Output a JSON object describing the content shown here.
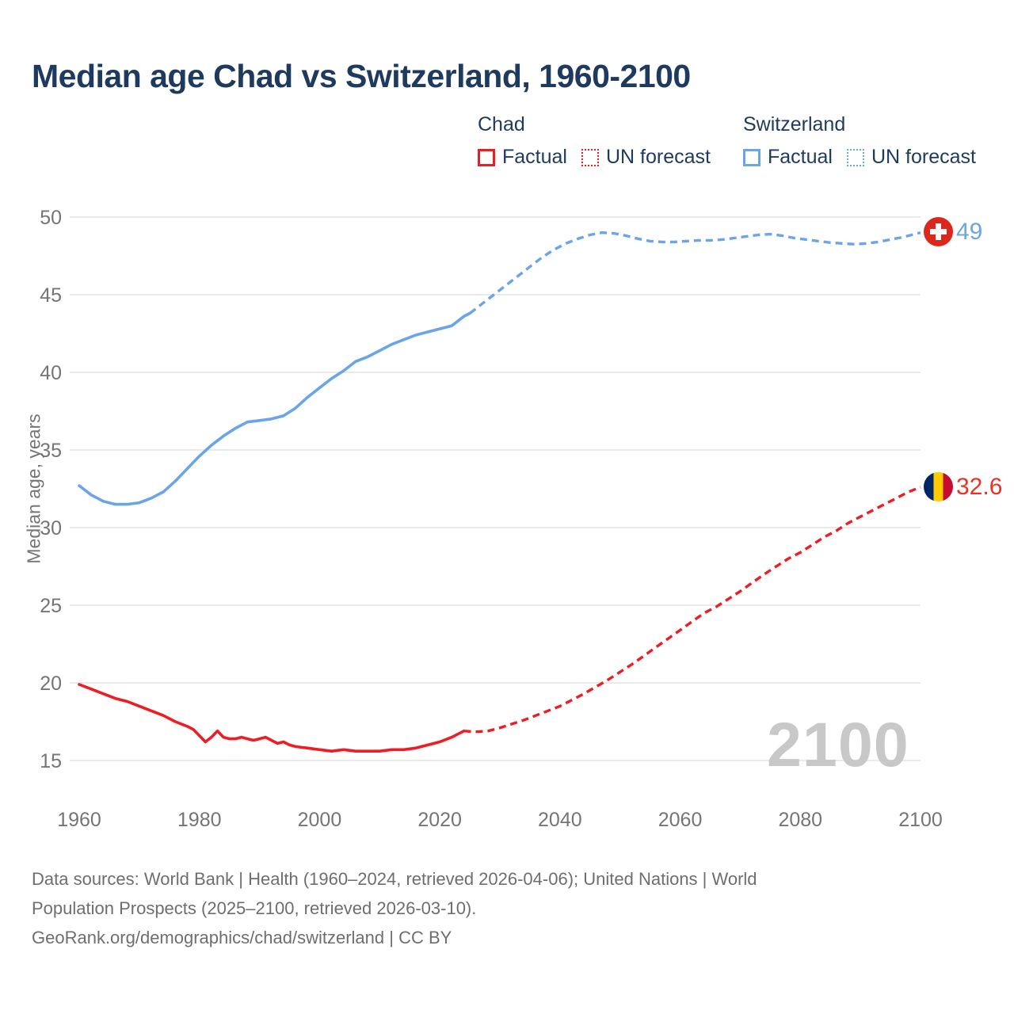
{
  "title": "Median age Chad vs Switzerland, 1960-2100",
  "legend": {
    "groups": [
      {
        "name": "Chad",
        "color": "#ee1d23",
        "items": [
          {
            "label": "Factual",
            "style": "solid"
          },
          {
            "label": "UN forecast",
            "style": "dotted"
          }
        ]
      },
      {
        "name": "Switzerland",
        "color": "#6ba4e7",
        "items": [
          {
            "label": "Factual",
            "style": "solid"
          },
          {
            "label": "UN forecast",
            "style": "dotted"
          }
        ]
      }
    ]
  },
  "chart_data": {
    "type": "line",
    "title": "Median age Chad vs Switzerland, 1960-2100",
    "xlabel": "",
    "ylabel": "Median age, years",
    "watermark": "2100",
    "grid": "horizontal",
    "legend_position": "top-right",
    "x_ticks": [
      1960,
      1980,
      2000,
      2020,
      2040,
      2060,
      2080,
      2100
    ],
    "y_ticks": [
      15,
      20,
      25,
      30,
      35,
      40,
      45,
      50
    ],
    "xlim": [
      1958,
      2100
    ],
    "ylim": [
      13.5,
      51.5
    ],
    "series": [
      {
        "name": "Switzerland Factual",
        "country": "Switzerland",
        "color": "#6ba4e7",
        "dash": false,
        "points": [
          [
            1960,
            32.7
          ],
          [
            1962,
            32.1
          ],
          [
            1964,
            31.7
          ],
          [
            1966,
            31.5
          ],
          [
            1968,
            31.5
          ],
          [
            1970,
            31.6
          ],
          [
            1972,
            31.9
          ],
          [
            1974,
            32.3
          ],
          [
            1976,
            33.0
          ],
          [
            1978,
            33.8
          ],
          [
            1980,
            34.6
          ],
          [
            1982,
            35.3
          ],
          [
            1984,
            35.9
          ],
          [
            1986,
            36.4
          ],
          [
            1988,
            36.8
          ],
          [
            1990,
            36.9
          ],
          [
            1992,
            37.0
          ],
          [
            1994,
            37.2
          ],
          [
            1996,
            37.7
          ],
          [
            1998,
            38.4
          ],
          [
            2000,
            39.0
          ],
          [
            2002,
            39.6
          ],
          [
            2004,
            40.1
          ],
          [
            2006,
            40.7
          ],
          [
            2008,
            41.0
          ],
          [
            2010,
            41.4
          ],
          [
            2012,
            41.8
          ],
          [
            2014,
            42.1
          ],
          [
            2016,
            42.4
          ],
          [
            2018,
            42.6
          ],
          [
            2020,
            42.8
          ],
          [
            2022,
            43.0
          ],
          [
            2023,
            43.3
          ],
          [
            2024,
            43.6
          ],
          [
            2025,
            43.8
          ]
        ]
      },
      {
        "name": "Switzerland UN forecast",
        "country": "Switzerland",
        "color": "#6ba4e7",
        "dash": true,
        "points": [
          [
            2025,
            43.8
          ],
          [
            2027,
            44.4
          ],
          [
            2029,
            45.0
          ],
          [
            2031,
            45.6
          ],
          [
            2033,
            46.2
          ],
          [
            2035,
            46.8
          ],
          [
            2037,
            47.4
          ],
          [
            2039,
            47.9
          ],
          [
            2041,
            48.3
          ],
          [
            2043,
            48.6
          ],
          [
            2045,
            48.85
          ],
          [
            2047,
            49.0
          ],
          [
            2049,
            48.95
          ],
          [
            2051,
            48.8
          ],
          [
            2053,
            48.6
          ],
          [
            2055,
            48.45
          ],
          [
            2057,
            48.4
          ],
          [
            2059,
            48.4
          ],
          [
            2061,
            48.45
          ],
          [
            2063,
            48.5
          ],
          [
            2065,
            48.5
          ],
          [
            2067,
            48.55
          ],
          [
            2069,
            48.65
          ],
          [
            2071,
            48.75
          ],
          [
            2073,
            48.85
          ],
          [
            2075,
            48.9
          ],
          [
            2077,
            48.8
          ],
          [
            2079,
            48.65
          ],
          [
            2081,
            48.55
          ],
          [
            2083,
            48.45
          ],
          [
            2085,
            48.35
          ],
          [
            2087,
            48.3
          ],
          [
            2089,
            48.25
          ],
          [
            2091,
            48.3
          ],
          [
            2093,
            48.4
          ],
          [
            2095,
            48.55
          ],
          [
            2097,
            48.7
          ],
          [
            2099,
            48.9
          ],
          [
            2100,
            49.0
          ]
        ]
      },
      {
        "name": "Chad Factual",
        "country": "Chad",
        "color": "#ee1d23",
        "dash": false,
        "points": [
          [
            1960,
            19.9
          ],
          [
            1962,
            19.6
          ],
          [
            1964,
            19.3
          ],
          [
            1966,
            19.0
          ],
          [
            1968,
            18.8
          ],
          [
            1970,
            18.5
          ],
          [
            1972,
            18.2
          ],
          [
            1974,
            17.9
          ],
          [
            1976,
            17.5
          ],
          [
            1978,
            17.2
          ],
          [
            1979,
            17.0
          ],
          [
            1980,
            16.6
          ],
          [
            1981,
            16.2
          ],
          [
            1982,
            16.5
          ],
          [
            1983,
            16.9
          ],
          [
            1984,
            16.5
          ],
          [
            1985,
            16.4
          ],
          [
            1986,
            16.4
          ],
          [
            1987,
            16.5
          ],
          [
            1988,
            16.4
          ],
          [
            1989,
            16.3
          ],
          [
            1990,
            16.4
          ],
          [
            1991,
            16.5
          ],
          [
            1992,
            16.3
          ],
          [
            1993,
            16.1
          ],
          [
            1994,
            16.2
          ],
          [
            1995,
            16.0
          ],
          [
            1996,
            15.9
          ],
          [
            1998,
            15.8
          ],
          [
            2000,
            15.7
          ],
          [
            2002,
            15.6
          ],
          [
            2004,
            15.7
          ],
          [
            2006,
            15.6
          ],
          [
            2008,
            15.6
          ],
          [
            2010,
            15.6
          ],
          [
            2012,
            15.7
          ],
          [
            2014,
            15.7
          ],
          [
            2016,
            15.8
          ],
          [
            2018,
            16.0
          ],
          [
            2020,
            16.2
          ],
          [
            2022,
            16.5
          ],
          [
            2023,
            16.7
          ],
          [
            2024,
            16.9
          ]
        ]
      },
      {
        "name": "Chad UN forecast",
        "country": "Chad",
        "color": "#ee1d23",
        "dash": true,
        "points": [
          [
            2024,
            16.9
          ],
          [
            2026,
            16.85
          ],
          [
            2028,
            16.9
          ],
          [
            2030,
            17.1
          ],
          [
            2032,
            17.35
          ],
          [
            2034,
            17.6
          ],
          [
            2036,
            17.9
          ],
          [
            2038,
            18.2
          ],
          [
            2040,
            18.5
          ],
          [
            2042,
            18.9
          ],
          [
            2044,
            19.3
          ],
          [
            2046,
            19.75
          ],
          [
            2048,
            20.2
          ],
          [
            2050,
            20.7
          ],
          [
            2052,
            21.2
          ],
          [
            2054,
            21.75
          ],
          [
            2056,
            22.3
          ],
          [
            2058,
            22.85
          ],
          [
            2060,
            23.4
          ],
          [
            2062,
            23.95
          ],
          [
            2064,
            24.5
          ],
          [
            2066,
            24.9
          ],
          [
            2068,
            25.4
          ],
          [
            2070,
            25.9
          ],
          [
            2072,
            26.45
          ],
          [
            2074,
            27.0
          ],
          [
            2076,
            27.5
          ],
          [
            2078,
            28.0
          ],
          [
            2080,
            28.4
          ],
          [
            2082,
            28.9
          ],
          [
            2084,
            29.4
          ],
          [
            2086,
            29.8
          ],
          [
            2088,
            30.3
          ],
          [
            2090,
            30.7
          ],
          [
            2092,
            31.1
          ],
          [
            2094,
            31.5
          ],
          [
            2096,
            31.9
          ],
          [
            2098,
            32.3
          ],
          [
            2100,
            32.6
          ]
        ]
      }
    ],
    "end_labels": [
      {
        "country": "Switzerland",
        "value": "49",
        "flag": "swiss-flag",
        "color": "#6ba4e7"
      },
      {
        "country": "Chad",
        "value": "32.6",
        "flag": "chad-flag",
        "color": "#ee3124"
      }
    ]
  },
  "footer": {
    "lines": [
      "Data sources: World Bank | Health (1960–2024, retrieved 2026-04-06); United Nations | World",
      "Population Prospects (2025–2100, retrieved 2026-03-10).",
      "GeoRank.org/demographics/chad/switzerland | CC BY"
    ]
  }
}
